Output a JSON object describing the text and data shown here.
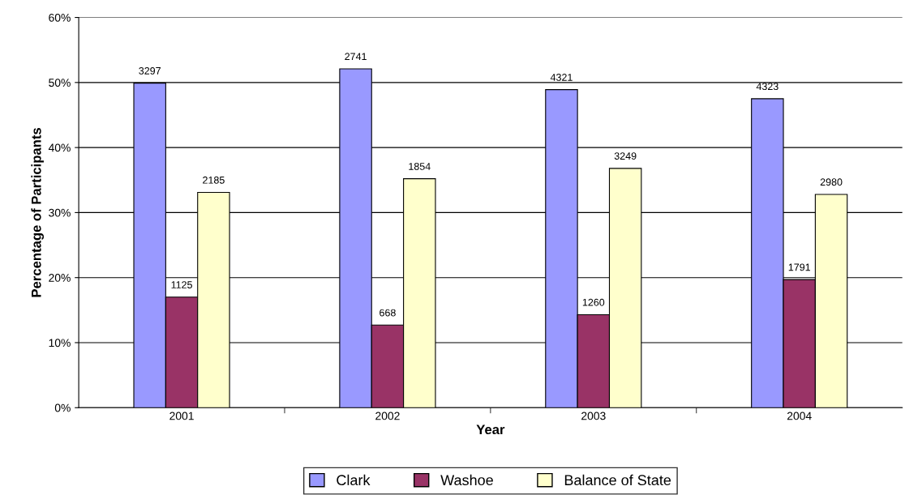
{
  "chart_data": {
    "type": "bar",
    "xlabel": "Year",
    "ylabel": "Percentage of Participants",
    "categories": [
      "2001",
      "2002",
      "2003",
      "2004"
    ],
    "series": [
      {
        "name": "Clark",
        "color": "#9999ff",
        "values": [
          49.9,
          52.1,
          48.9,
          47.5
        ]
      },
      {
        "name": "Washoe",
        "color": "#993366",
        "values": [
          17.0,
          12.7,
          14.3,
          19.7
        ]
      },
      {
        "name": "Balance of State",
        "color": "#ffffcc",
        "values": [
          33.1,
          35.2,
          36.8,
          32.8
        ]
      }
    ],
    "annotations": [
      "3297",
      "2741",
      "4321",
      "4323",
      "1125",
      "668",
      "1260",
      "1791",
      "2185",
      "1854",
      "3249",
      "2980"
    ],
    "ylim": [
      0,
      60
    ],
    "yticks": [
      {
        "value": 0,
        "label": "0%"
      },
      {
        "value": 10,
        "label": "10%"
      },
      {
        "value": 20,
        "label": "20%"
      },
      {
        "value": 30,
        "label": "30%"
      },
      {
        "value": 40,
        "label": "40%"
      },
      {
        "value": 50,
        "label": "50%"
      },
      {
        "value": 60,
        "label": "60%"
      }
    ],
    "grid": "y",
    "legend": "bottom"
  }
}
